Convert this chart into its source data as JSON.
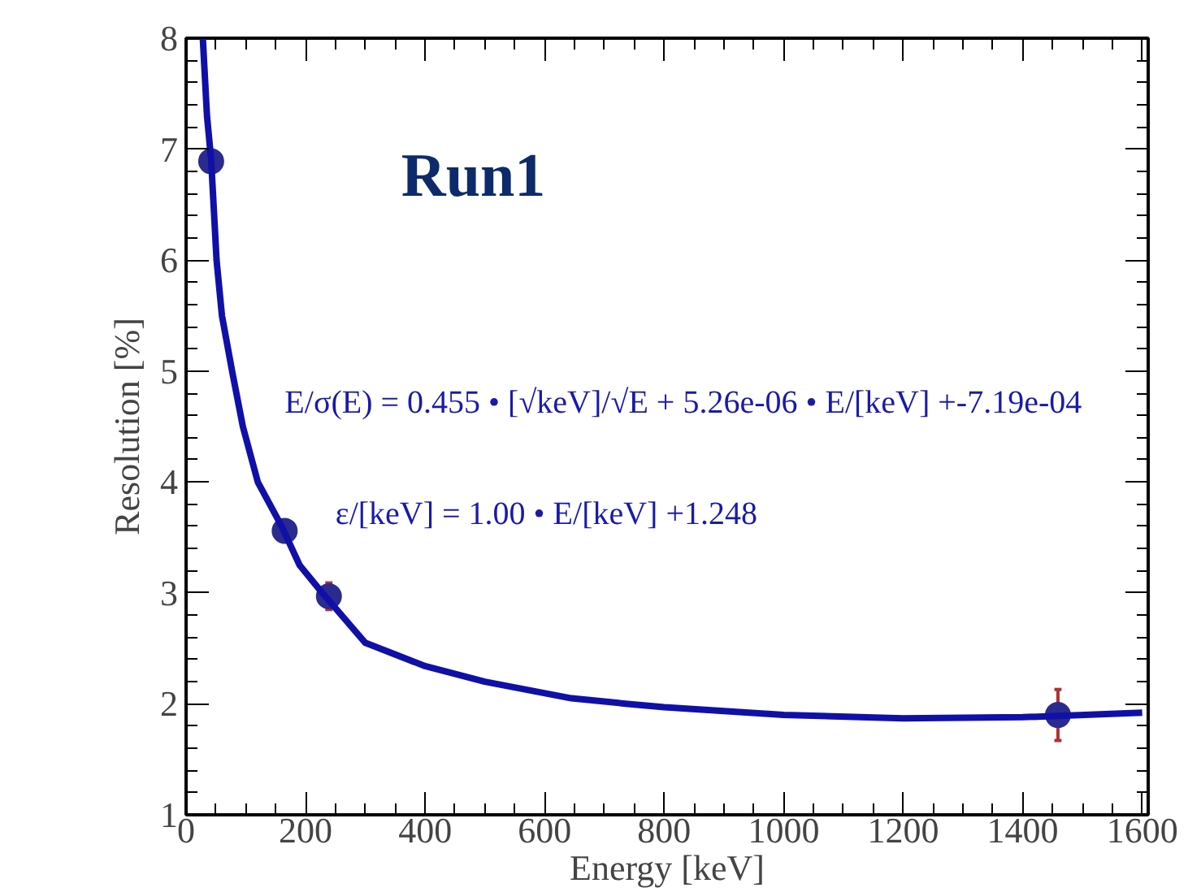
{
  "chart_data": {
    "type": "scatter",
    "xlabel": "Energy [keV]",
    "ylabel": "Resolution [%]",
    "xlim": [
      0,
      1610
    ],
    "ylim": [
      1,
      8
    ],
    "xticks": [
      0,
      200,
      400,
      600,
      800,
      1000,
      1200,
      1400,
      1600
    ],
    "yticks": [
      1,
      2,
      3,
      4,
      5,
      6,
      7,
      8
    ],
    "grid": false,
    "annotations": [
      "Run1",
      "E/σ(E) = 0.455 • [√keV]/√E + 5.26e-06 • E/[keV] +-7.19e-04",
      "ε/[keV] = 1.00 • E/[keV] +1.248"
    ],
    "series": [
      {
        "color": "#2b2b8f",
        "marker": "circle",
        "x": [
          42,
          165,
          239,
          1459
        ],
        "values": [
          6.89,
          3.56,
          2.97,
          1.9
        ],
        "errors": [
          null,
          null,
          0.12,
          0.23
        ]
      },
      {
        "type": "line",
        "color": "#1010a8",
        "line_style": "solid",
        "x": [
          28,
          35,
          42,
          51,
          60,
          77,
          95,
          120,
          160,
          190,
          228,
          260,
          300,
          400,
          500,
          645,
          739,
          800,
          1000,
          1200,
          1400,
          1600
        ],
        "values": [
          8,
          7.3,
          6.9,
          6,
          5.5,
          5,
          4.5,
          4,
          3.6,
          3.25,
          3,
          2.8,
          2.55,
          2.34,
          2.2,
          2.05,
          2.0,
          1.97,
          1.9,
          1.87,
          1.88,
          1.92
        ]
      }
    ]
  }
}
